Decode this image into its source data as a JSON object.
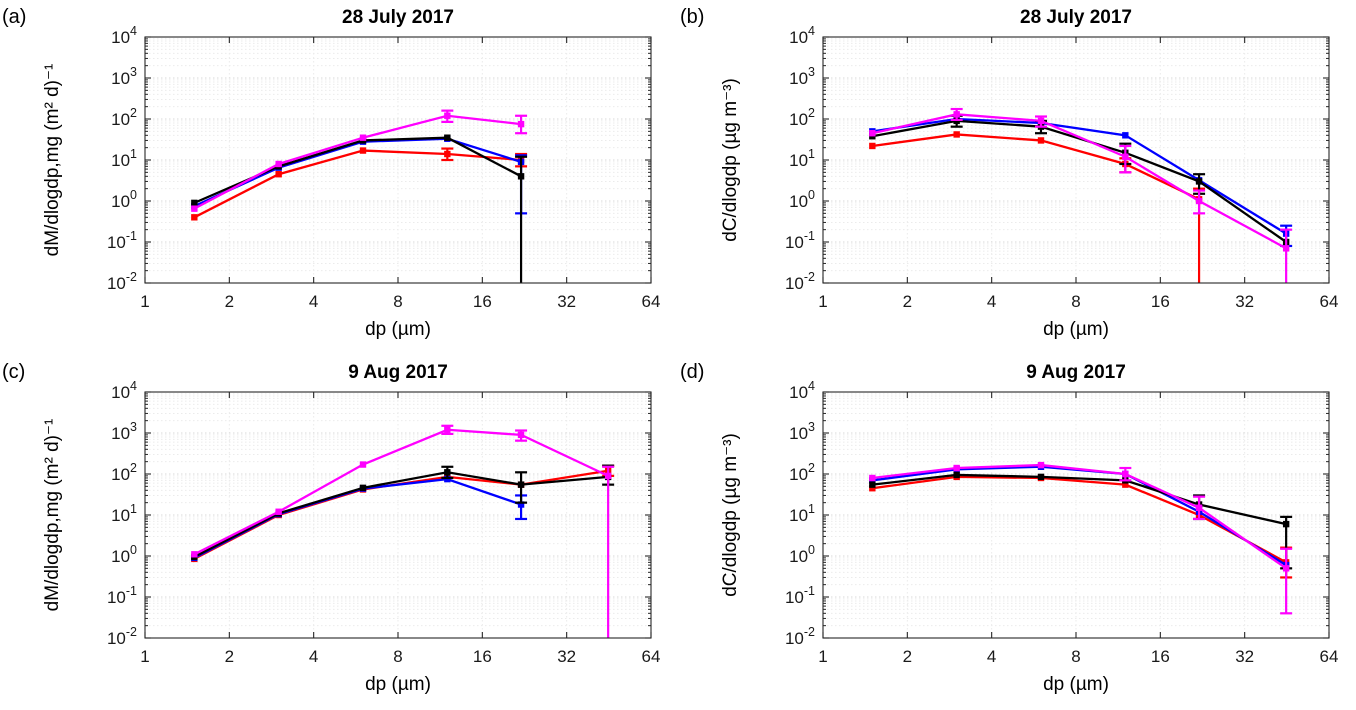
{
  "figure": {
    "background": "#ffffff",
    "axis_color": "#262626",
    "grid_major_color": "#d9d9d9",
    "grid_minor_color": "#ebebeb"
  },
  "chart_data": [
    {
      "id": "a",
      "corner_label": "(a)",
      "type": "line",
      "title": "28 July 2017",
      "xlabel": "dp (µm)",
      "ylabel": "dM/dlogdp,mg (m² d)⁻¹",
      "xscale": "log2",
      "yscale": "log10",
      "xlim": [
        1,
        64
      ],
      "yexp": [
        -2,
        4
      ],
      "xticks": [
        1,
        2,
        4,
        8,
        16,
        32,
        64
      ],
      "series": [
        {
          "name": "red",
          "color": "#ff0000",
          "x": [
            1.5,
            3,
            6,
            12,
            22
          ],
          "y": [
            0.4,
            4.5,
            17,
            14,
            10
          ],
          "err": [
            null,
            null,
            null,
            [
              10,
              19
            ],
            [
              7,
              14
            ]
          ]
        },
        {
          "name": "blue",
          "color": "#0000ff",
          "x": [
            1.5,
            3,
            6,
            12,
            22
          ],
          "y": [
            0.75,
            6.5,
            28,
            33,
            9
          ],
          "err": [
            null,
            null,
            null,
            null,
            [
              0.5,
              13
            ]
          ]
        },
        {
          "name": "black",
          "color": "#000000",
          "x": [
            1.5,
            3,
            6,
            12,
            22
          ],
          "y": [
            0.9,
            7,
            30,
            35,
            4
          ],
          "err": [
            null,
            null,
            null,
            null,
            [
              0.01,
              12
            ]
          ]
        },
        {
          "name": "magenta",
          "color": "#ff00ff",
          "x": [
            1.5,
            3,
            6,
            12,
            22
          ],
          "y": [
            0.65,
            8,
            35,
            120,
            75
          ],
          "err": [
            null,
            null,
            null,
            [
              85,
              160
            ],
            [
              45,
              120
            ]
          ]
        }
      ]
    },
    {
      "id": "b",
      "corner_label": "(b)",
      "type": "line",
      "title": "28 July 2017",
      "xlabel": "dp (µm)",
      "ylabel": "dC/dlogdp (µg m⁻³)",
      "xscale": "log2",
      "yscale": "log10",
      "xlim": [
        1,
        64
      ],
      "yexp": [
        -2,
        4
      ],
      "xticks": [
        1,
        2,
        4,
        8,
        16,
        32,
        64
      ],
      "series": [
        {
          "name": "red",
          "color": "#ff0000",
          "x": [
            1.5,
            3,
            6,
            12,
            22
          ],
          "y": [
            22,
            42,
            30,
            8,
            1.1
          ],
          "err": [
            null,
            null,
            null,
            [
              5,
              11
            ],
            [
              0.01,
              2
            ]
          ]
        },
        {
          "name": "blue",
          "color": "#0000ff",
          "x": [
            1.5,
            3,
            6,
            12,
            22,
            45
          ],
          "y": [
            50,
            100,
            80,
            40,
            3.2,
            0.16
          ],
          "err": [
            null,
            null,
            null,
            null,
            null,
            [
              0.08,
              0.25
            ]
          ]
        },
        {
          "name": "black",
          "color": "#000000",
          "x": [
            1.5,
            3,
            6,
            12,
            22,
            45
          ],
          "y": [
            38,
            90,
            65,
            15,
            3,
            0.1
          ],
          "err": [
            null,
            [
              65,
              120
            ],
            [
              45,
              90
            ],
            [
              8,
              25
            ],
            [
              1.5,
              4.5
            ],
            null
          ]
        },
        {
          "name": "magenta",
          "color": "#ff00ff",
          "x": [
            1.5,
            3,
            6,
            12,
            22,
            45
          ],
          "y": [
            45,
            130,
            90,
            12,
            1,
            0.07
          ],
          "err": [
            null,
            [
              95,
              175
            ],
            [
              65,
              115
            ],
            [
              5,
              22
            ],
            [
              0.5,
              1.8
            ],
            [
              0.01,
              0.2
            ]
          ]
        }
      ]
    },
    {
      "id": "c",
      "corner_label": "(c)",
      "type": "line",
      "title": "9 Aug 2017",
      "xlabel": "dp (µm)",
      "ylabel": "dM/dlogdp,mg (m² d)⁻¹",
      "xscale": "log2",
      "yscale": "log10",
      "xlim": [
        1,
        64
      ],
      "yexp": [
        -2,
        4
      ],
      "xticks": [
        1,
        2,
        4,
        8,
        16,
        32,
        64
      ],
      "series": [
        {
          "name": "red",
          "color": "#ff0000",
          "x": [
            1.5,
            3,
            6,
            12,
            22,
            45
          ],
          "y": [
            0.85,
            10,
            42,
            85,
            55,
            120
          ],
          "err": [
            null,
            null,
            null,
            null,
            null,
            [
              90,
              160
            ]
          ]
        },
        {
          "name": "blue",
          "color": "#0000ff",
          "x": [
            1.5,
            3,
            6,
            12,
            22
          ],
          "y": [
            0.9,
            10.5,
            44,
            75,
            18
          ],
          "err": [
            null,
            null,
            null,
            null,
            [
              8,
              30
            ]
          ]
        },
        {
          "name": "black",
          "color": "#000000",
          "x": [
            1.5,
            3,
            6,
            12,
            22,
            45
          ],
          "y": [
            0.95,
            11,
            46,
            110,
            55,
            85
          ],
          "err": [
            null,
            null,
            null,
            [
              80,
              150
            ],
            [
              20,
              110
            ],
            [
              55,
              160
            ]
          ]
        },
        {
          "name": "magenta",
          "color": "#ff00ff",
          "x": [
            1.5,
            3,
            6,
            12,
            22,
            45
          ],
          "y": [
            1.1,
            12,
            170,
            1200,
            900,
            90
          ],
          "err": [
            null,
            null,
            null,
            [
              950,
              1500
            ],
            [
              650,
              1150
            ],
            [
              0.01,
              150
            ]
          ]
        }
      ]
    },
    {
      "id": "d",
      "corner_label": "(d)",
      "type": "line",
      "title": "9 Aug 2017",
      "xlabel": "dp (µm)",
      "ylabel": "dC/dlogdp (µg m⁻³)",
      "xscale": "log2",
      "yscale": "log10",
      "xlim": [
        1,
        64
      ],
      "yexp": [
        -2,
        4
      ],
      "xticks": [
        1,
        2,
        4,
        8,
        16,
        32,
        64
      ],
      "series": [
        {
          "name": "red",
          "color": "#ff0000",
          "x": [
            1.5,
            3,
            6,
            12,
            22,
            45
          ],
          "y": [
            45,
            85,
            80,
            55,
            10,
            0.7
          ],
          "err": [
            null,
            null,
            null,
            null,
            null,
            [
              0.3,
              1.6
            ]
          ]
        },
        {
          "name": "blue",
          "color": "#0000ff",
          "x": [
            1.5,
            3,
            6,
            12,
            22,
            45
          ],
          "y": [
            70,
            130,
            150,
            100,
            12,
            0.6
          ],
          "err": [
            null,
            null,
            null,
            null,
            null,
            null
          ]
        },
        {
          "name": "black",
          "color": "#000000",
          "x": [
            1.5,
            3,
            6,
            12,
            22,
            45
          ],
          "y": [
            55,
            95,
            85,
            70,
            18,
            6
          ],
          "err": [
            null,
            null,
            null,
            null,
            [
              8,
              30
            ],
            [
              0.5,
              9
            ]
          ]
        },
        {
          "name": "magenta",
          "color": "#ff00ff",
          "x": [
            1.5,
            3,
            6,
            12,
            22,
            45
          ],
          "y": [
            80,
            140,
            165,
            100,
            15,
            0.5
          ],
          "err": [
            null,
            null,
            null,
            [
              70,
              140
            ],
            [
              8,
              28
            ],
            [
              0.04,
              1.5
            ]
          ]
        }
      ]
    }
  ]
}
